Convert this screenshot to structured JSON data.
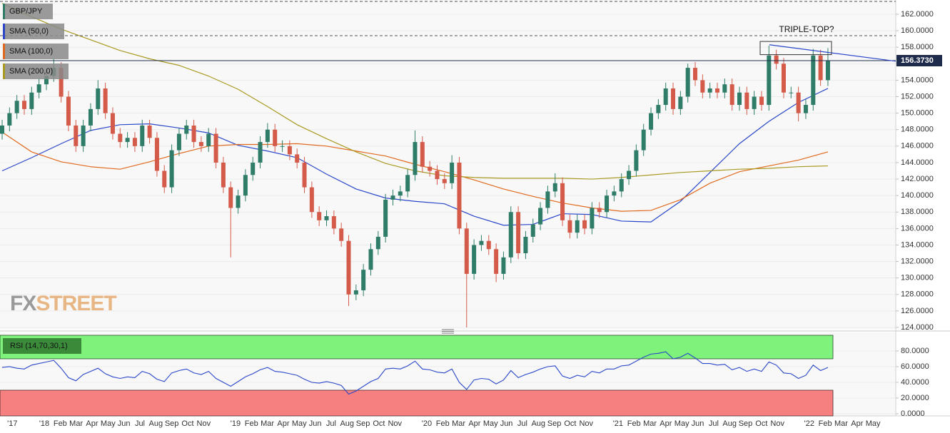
{
  "chart_data": [
    {
      "type": "candlestick",
      "title": "GBP/JPY",
      "x_labels": [
        "'17",
        null,
        "'18",
        "Feb",
        "Mar",
        "Apr",
        "May",
        "Jun",
        "Jul",
        "Aug",
        "Sep",
        "Oct",
        "Nov",
        null,
        "'19",
        "Feb",
        "Mar",
        "Apr",
        "May",
        "Jun",
        "Jul",
        "Aug",
        "Sep",
        "Oct",
        "Nov",
        null,
        "'20",
        "Feb",
        "Mar",
        "Apr",
        "May",
        "Jun",
        "Jul",
        "Aug",
        "Sep",
        "Oct",
        "Nov",
        null,
        "'21",
        "Feb",
        "Mar",
        "Apr",
        "May",
        "Jun",
        "Jul",
        "Aug",
        "Sep",
        "Oct",
        "Nov",
        null,
        "'22",
        "Feb",
        "Mar",
        "Apr",
        "May"
      ],
      "open": [
        147.5,
        148.5,
        150,
        151.5,
        150.5,
        152.5,
        153.5,
        154.5,
        155.5,
        152,
        148.5,
        146,
        148.5,
        150.5,
        153,
        150,
        147.5,
        146.5,
        147,
        146,
        148.5,
        147,
        143,
        141,
        145.5,
        147.5,
        148.5,
        146.5,
        146,
        147.5,
        144,
        141,
        138.5,
        140,
        142.5,
        144,
        146.5,
        148,
        146,
        146,
        145,
        144,
        141,
        138,
        137,
        137.5,
        136,
        134.5,
        128,
        128.5,
        131,
        133.5,
        135,
        139.5,
        140,
        140.5,
        142.5,
        146.5,
        143.5,
        143,
        142,
        141.5,
        144,
        136,
        130.5,
        134,
        134.5,
        133.5,
        130.5,
        132.5,
        138,
        133,
        135,
        136.5,
        138.5,
        140.5,
        141.5,
        137,
        135.5,
        137,
        136,
        138.5,
        138,
        140,
        140.5,
        142,
        143,
        145.5,
        148,
        150,
        151,
        153,
        150.5,
        152,
        155.5,
        154,
        152.5,
        153,
        152.5,
        153.5,
        151,
        152.5,
        150.5,
        152,
        151,
        157,
        156,
        152.5,
        152.5,
        150,
        151,
        157,
        154
      ],
      "high": [
        149.2,
        150.7,
        152.2,
        152.2,
        153.2,
        154.2,
        155.2,
        156.6,
        156.2,
        152.7,
        149.2,
        149.2,
        151.2,
        154,
        153.7,
        150.7,
        148.2,
        147.7,
        147.7,
        149.2,
        149.2,
        147.7,
        143.7,
        146.2,
        148.2,
        149.2,
        149.2,
        147.2,
        148.2,
        148.2,
        144.7,
        141.7,
        140.7,
        143.2,
        144.7,
        147.2,
        148.8,
        148.7,
        146.7,
        146.7,
        145.7,
        144.7,
        141.7,
        138.7,
        138.2,
        138.2,
        136.7,
        135.2,
        129.2,
        131.7,
        134.2,
        135.7,
        140.2,
        140.7,
        141.2,
        143.2,
        147.9,
        147.2,
        144.2,
        143.7,
        142.7,
        144.9,
        144.7,
        136.7,
        134.7,
        135.2,
        135.2,
        134.2,
        133.2,
        138.7,
        138.7,
        135.7,
        137.2,
        139.2,
        141.2,
        142.7,
        142.2,
        137.7,
        137.7,
        137.7,
        139.2,
        139.2,
        140.7,
        141.2,
        142.7,
        143.7,
        146.2,
        148.7,
        150.7,
        151.7,
        153.7,
        153.7,
        152.7,
        156,
        156.2,
        154.7,
        153.7,
        153.7,
        154.2,
        154.2,
        153.2,
        153.2,
        152.7,
        152.7,
        158.2,
        157.7,
        156.7,
        153.2,
        153.2,
        151.7,
        157.8,
        157.7,
        157.9
      ],
      "low": [
        146.8,
        147.8,
        149.3,
        149.8,
        149.8,
        151.8,
        152.8,
        153.8,
        151.3,
        147.8,
        145.3,
        145.3,
        147.8,
        149.8,
        149.3,
        146.8,
        145.8,
        145.8,
        145.3,
        145.3,
        146.3,
        142.3,
        140.3,
        140.3,
        144.8,
        146.8,
        145.8,
        145.3,
        145.3,
        143.3,
        140.3,
        132.5,
        137.8,
        139.3,
        141.8,
        143.3,
        145.8,
        145.3,
        145.3,
        144.3,
        143.3,
        140.3,
        137.3,
        136.3,
        136.3,
        135.3,
        133.8,
        126.6,
        127.3,
        127.8,
        130.3,
        132.8,
        134.3,
        138.8,
        139.3,
        139.8,
        141.8,
        142.8,
        142.3,
        141.3,
        140.8,
        140.8,
        135.3,
        124,
        129.8,
        133.3,
        132.8,
        129.5,
        129.8,
        131.8,
        132.3,
        132.3,
        134.3,
        135.8,
        137.8,
        139.8,
        136.3,
        134.8,
        134.8,
        135.3,
        135.3,
        137.3,
        137.3,
        139.3,
        139.8,
        141.3,
        142.3,
        144.8,
        147.3,
        149.3,
        150.3,
        149.8,
        149.8,
        151.3,
        153.3,
        151.8,
        151.8,
        151.8,
        151.8,
        150.3,
        150.3,
        149.8,
        149.8,
        150.3,
        150.3,
        155.3,
        151.8,
        151.8,
        149,
        149.3,
        150.3,
        153.3,
        153.3
      ],
      "close": [
        148.5,
        150,
        151.5,
        150.5,
        152.5,
        153.5,
        154.5,
        155.5,
        152,
        148.5,
        146,
        148.5,
        150.5,
        153,
        150,
        147.5,
        146.5,
        147,
        146,
        148.5,
        147,
        143,
        141,
        145.5,
        147.5,
        148.5,
        146.5,
        146,
        147.5,
        144,
        141,
        138.5,
        140,
        142.5,
        144,
        146.5,
        148,
        146,
        146,
        145,
        144,
        141,
        138,
        137,
        137.5,
        136,
        134.5,
        128,
        128.5,
        131,
        133.5,
        135,
        139.5,
        140,
        140.5,
        142.5,
        146.5,
        143.5,
        143,
        142,
        141.5,
        144,
        136,
        130.5,
        134,
        134.5,
        133.5,
        130.5,
        132.5,
        138,
        133,
        135,
        136.5,
        138.5,
        140.5,
        141.5,
        137,
        135.5,
        137,
        136,
        138.5,
        138,
        140,
        140.5,
        142,
        143,
        145.5,
        148,
        150,
        151,
        153,
        150.5,
        152,
        155.5,
        154,
        152.5,
        153,
        152.5,
        153.5,
        151,
        152.5,
        150.5,
        152,
        151,
        157,
        156,
        152.5,
        152.5,
        150,
        151,
        157,
        154,
        156.4
      ],
      "up_color": "#2f7d68",
      "down_color": "#d45a4a",
      "overlays": [
        {
          "name": "SMA (50,0)",
          "color": "#2a47c9",
          "values": [
            143,
            144.6,
            146.3,
            147.9,
            148.6,
            148.7,
            148.2,
            147.6,
            146.1,
            145.4,
            144.6,
            142.6,
            140.8,
            139.7,
            139.3,
            139.0,
            137.5,
            136.4,
            136.5,
            137.8,
            137.7,
            136.9,
            136.8,
            139.3,
            142.8,
            146.3,
            149,
            151.3,
            153
          ]
        },
        {
          "name": "SMA (100,0)",
          "color": "#e0691e",
          "values": [
            147.7,
            145.3,
            144.1,
            143.5,
            143.2,
            144.1,
            145.1,
            146,
            146.2,
            146.2,
            146.3,
            146,
            145.4,
            144.8,
            143.8,
            142.9,
            141.9,
            140.8,
            139.9,
            139.1,
            138.5,
            138.1,
            138.2,
            139.5,
            141.5,
            142.9,
            143.6,
            144.3,
            145.3
          ]
        },
        {
          "name": "SMA (200,0)",
          "color": "#a99a22",
          "values": [
            163.3,
            161.7,
            160.2,
            158.9,
            157.6,
            156.6,
            155.8,
            154.5,
            152.9,
            150.8,
            148.6,
            146.9,
            145.3,
            143.9,
            143,
            142.4,
            142.2,
            142.1,
            142.1,
            142.1,
            142,
            142.2,
            142.5,
            142.8,
            143,
            143.2,
            143.3,
            143.5,
            143.6
          ]
        }
      ],
      "levels": [
        163.56,
        159.4
      ],
      "last_price": {
        "value": 156.373,
        "label": "156.3730"
      },
      "trendline": [
        158.3,
        156.3
      ],
      "annotation_box": [
        158.7,
        157.1
      ],
      "annotation": "TRIPLE-TOP?",
      "watermark": [
        "FX",
        "STREET"
      ],
      "ylim": [
        123.74,
        163.73
      ],
      "yticks": [
        {
          "value": 124,
          "label": "124.0000"
        },
        {
          "value": 126,
          "label": "126.0000"
        },
        {
          "value": 128,
          "label": "128.0000"
        },
        {
          "value": 130,
          "label": "130.0000"
        },
        {
          "value": 132,
          "label": "132.0000"
        },
        {
          "value": 134,
          "label": "134.0000"
        },
        {
          "value": 136,
          "label": "136.0000"
        },
        {
          "value": 138,
          "label": "138.0000"
        },
        {
          "value": 140,
          "label": "140.0000"
        },
        {
          "value": 142,
          "label": "142.0000"
        },
        {
          "value": 144,
          "label": "144.0000"
        },
        {
          "value": 146,
          "label": "146.0000"
        },
        {
          "value": 148,
          "label": "148.0000"
        },
        {
          "value": 150,
          "label": "150.0000"
        },
        {
          "value": 152,
          "label": "152.0000"
        },
        {
          "value": 154,
          "label": "154.0000"
        },
        {
          "value": 156,
          "label": "156.0000"
        },
        {
          "value": 158,
          "label": "158.0000"
        },
        {
          "value": 160,
          "label": "160.0000"
        },
        {
          "value": 162,
          "label": "162.0000"
        }
      ],
      "grid": true
    },
    {
      "type": "line",
      "name": "RSI (14,70,30,1)",
      "color": "#2a47c9",
      "values": [
        59,
        60,
        58,
        57,
        62,
        64,
        66,
        68,
        58,
        46,
        42,
        50,
        54,
        58,
        51,
        47,
        45,
        47,
        46,
        54,
        51,
        44,
        41,
        52,
        55,
        57,
        52,
        50,
        54,
        45,
        40,
        35,
        41,
        47,
        51,
        56,
        59,
        54,
        53,
        51,
        49,
        44,
        40,
        39,
        41,
        39,
        36,
        25,
        29,
        35,
        41,
        45,
        57,
        58,
        57,
        61,
        67,
        57,
        56,
        53,
        52,
        57,
        40,
        31,
        43,
        45,
        44,
        38,
        43,
        55,
        46,
        50,
        53,
        57,
        60,
        61,
        48,
        45,
        49,
        47,
        54,
        52,
        57,
        57,
        61,
        62,
        67,
        72,
        76,
        77,
        79,
        70,
        72,
        77,
        71,
        64,
        64,
        62,
        63,
        56,
        59,
        54,
        57,
        54,
        66,
        62,
        52,
        51,
        45,
        49,
        62,
        55,
        59
      ],
      "upper_band": 70,
      "lower_band": 30,
      "upper_color": "#7ef27a",
      "lower_color": "#f67f7f",
      "ylim": [
        -2.7,
        103.6
      ],
      "yticks": [
        {
          "value": 0,
          "label": "0.0000"
        },
        {
          "value": 20,
          "label": "20.0000"
        },
        {
          "value": 40,
          "label": "40.0000"
        },
        {
          "value": 60,
          "label": "60.0000"
        },
        {
          "value": 80,
          "label": "80.0000"
        }
      ],
      "grid": true
    }
  ]
}
